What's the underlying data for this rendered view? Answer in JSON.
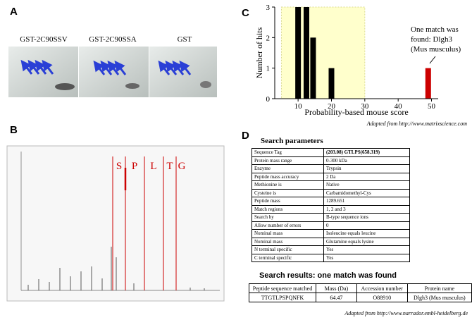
{
  "panel_a": {
    "letter": "A",
    "labels": [
      "GST-2C90SSV",
      "GST-2C90SSA",
      "GST"
    ]
  },
  "panel_b": {
    "letter": "B",
    "residues": [
      "S",
      "P",
      "L",
      "T",
      "G"
    ]
  },
  "chart_data": {
    "type": "bar",
    "letter": "C",
    "x": [
      10,
      12.5,
      14.5,
      20,
      49
    ],
    "values": [
      3,
      3,
      2,
      1,
      1
    ],
    "colors": [
      "#000000",
      "#000000",
      "#000000",
      "#000000",
      "#cc0000"
    ],
    "xlim": [
      3,
      52
    ],
    "ylim": [
      0,
      3
    ],
    "xticks": [
      10,
      20,
      30,
      40,
      50
    ],
    "yticks": [
      0,
      1,
      2,
      3
    ],
    "highlight_range": [
      5,
      30
    ],
    "highlight_color": "#ffffcc",
    "xlabel": "Probability-based mouse score",
    "ylabel": "Number of hits",
    "annotation": [
      "One match was",
      "found: Dlgh3",
      "(Mus musculus)"
    ],
    "source": "Adapted from http://www.matrixscience.com"
  },
  "panel_d": {
    "letter": "D",
    "params_title": "Search parameters",
    "params": [
      [
        "Sequence Tag",
        "(203.08) GTLPS(658.319)"
      ],
      [
        "Protein mass range",
        "0-300 kDa"
      ],
      [
        "Enzyme",
        "Trypsin"
      ],
      [
        "Peptide mass accuracy",
        "2 Da"
      ],
      [
        "Methionine is",
        "Native"
      ],
      [
        "Cysteine is",
        "Carbamidomethyl-Cys"
      ],
      [
        "Peptide mass",
        "1289.651"
      ],
      [
        "Match regions",
        "1, 2 and 3"
      ],
      [
        "Search by",
        "B-type sequence ions"
      ],
      [
        "Allow number of errors",
        "0"
      ],
      [
        "Nominal mass",
        "Isoleucine equals leucine"
      ],
      [
        "Nominal mass",
        "Glutamine equals lysine"
      ],
      [
        "N terminal specific",
        "Yes"
      ],
      [
        "C terminal specific",
        "Yes"
      ]
    ],
    "results_title": "Search results: one match was found",
    "results_header": [
      "Peptide sequence matched",
      "Mass (Da)",
      "Accession number",
      "Protein name"
    ],
    "results_row": [
      "TTGTLPSPQNFK",
      "64.47",
      "O88910",
      "Dlgh3 (Mus musculus)"
    ],
    "source": "Adapted from http://www.narrador.embl-heidelberg.de"
  }
}
